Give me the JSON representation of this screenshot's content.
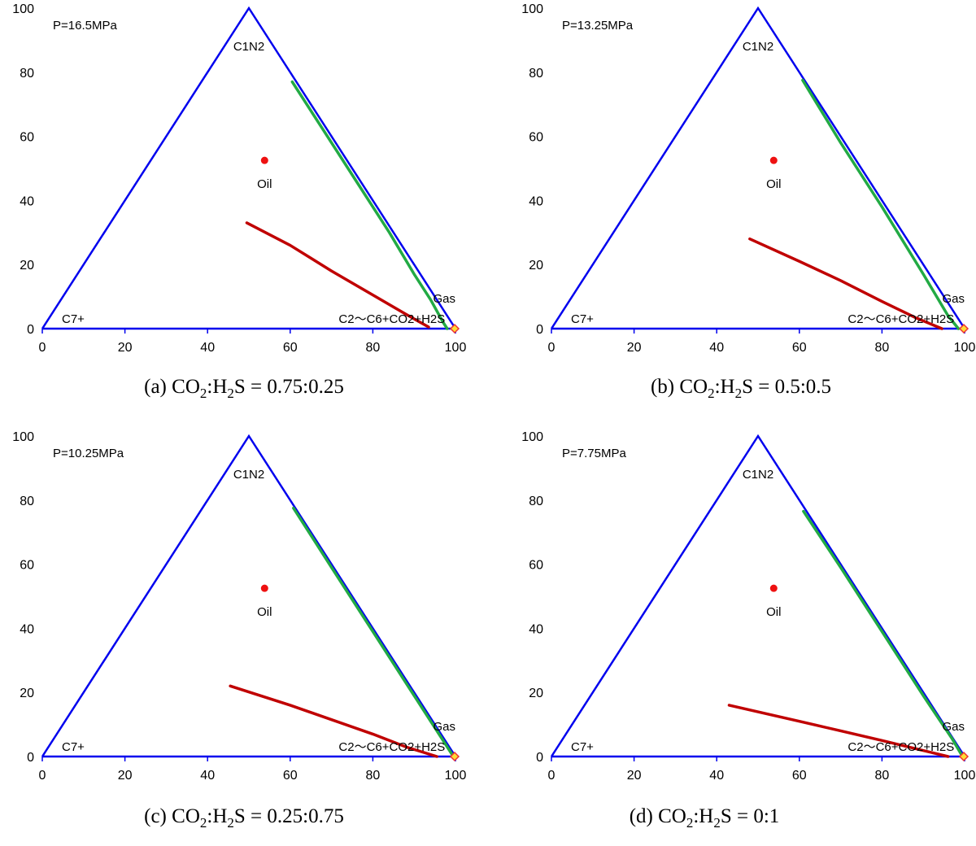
{
  "chart_data": [
    {
      "type": "scatter",
      "label": "(a)",
      "ratio_a": "0.75",
      "ratio_b": "0.25",
      "pressure": "P=16.5MPa",
      "xlim": [
        0,
        100
      ],
      "ylim": [
        0,
        100
      ],
      "xticks": [
        "0",
        "20",
        "40",
        "60",
        "80",
        "100"
      ],
      "yticks": [
        "0",
        "20",
        "40",
        "60",
        "80",
        "100"
      ],
      "vertex_labels": {
        "top": "C1N2",
        "left": "C7+",
        "right": "C2～C6+CO2+H2S"
      },
      "point_labels": {
        "oil": "Oil",
        "gas": "Gas"
      },
      "triangle": [
        [
          0,
          0
        ],
        [
          50,
          100
        ],
        [
          100,
          0
        ],
        [
          0,
          0
        ]
      ],
      "oil_point": [
        53.8,
        52.5
      ],
      "gas_point": [
        99.8,
        0
      ],
      "series": [
        {
          "color": "#22aa44",
          "points": [
            [
              60.5,
              77
            ],
            [
              68,
              62
            ],
            [
              76,
              46
            ],
            [
              84,
              30
            ],
            [
              90,
              17
            ],
            [
              94,
              9
            ],
            [
              97,
              2
            ],
            [
              98,
              0
            ]
          ]
        },
        {
          "color": "#c00000",
          "points": [
            [
              49.5,
              33
            ],
            [
              60,
              26
            ],
            [
              70,
              18
            ],
            [
              80,
              10.5
            ],
            [
              88,
              4.5
            ],
            [
              93.5,
              0.5
            ]
          ]
        }
      ]
    },
    {
      "type": "scatter",
      "label": "(b)",
      "ratio_a": "0.5",
      "ratio_b": "0.5",
      "pressure": "P=13.25MPa",
      "xlim": [
        0,
        100
      ],
      "ylim": [
        0,
        100
      ],
      "xticks": [
        "0",
        "20",
        "40",
        "60",
        "80",
        "100"
      ],
      "yticks": [
        "0",
        "20",
        "40",
        "60",
        "80",
        "100"
      ],
      "vertex_labels": {
        "top": "C1N2",
        "left": "C7+",
        "right": "C2～C6+CO2+H2S"
      },
      "point_labels": {
        "oil": "Oil",
        "gas": "Gas"
      },
      "triangle": [
        [
          0,
          0
        ],
        [
          50,
          100
        ],
        [
          100,
          0
        ],
        [
          0,
          0
        ]
      ],
      "oil_point": [
        53.8,
        52.5
      ],
      "gas_point": [
        99.8,
        0
      ],
      "series": [
        {
          "color": "#22aa44",
          "points": [
            [
              60.8,
              77.5
            ],
            [
              70,
              58
            ],
            [
              80,
              38
            ],
            [
              90,
              17
            ],
            [
              96,
              4
            ],
            [
              98.5,
              0
            ]
          ]
        },
        {
          "color": "#c00000",
          "points": [
            [
              48,
              28
            ],
            [
              60,
              21
            ],
            [
              70,
              15
            ],
            [
              80,
              8.5
            ],
            [
              88,
              3.5
            ],
            [
              94.5,
              0
            ]
          ]
        }
      ]
    },
    {
      "type": "scatter",
      "label": "(c)",
      "ratio_a": "0.25",
      "ratio_b": "0.75",
      "pressure": "P=10.25MPa",
      "xlim": [
        0,
        100
      ],
      "ylim": [
        0,
        100
      ],
      "xticks": [
        "0",
        "20",
        "40",
        "60",
        "80",
        "100"
      ],
      "yticks": [
        "0",
        "20",
        "40",
        "60",
        "80",
        "100"
      ],
      "vertex_labels": {
        "top": "C1N2",
        "left": "C7+",
        "right": "C2～C6+CO2+H2S"
      },
      "point_labels": {
        "oil": "Oil",
        "gas": "Gas"
      },
      "triangle": [
        [
          0,
          0
        ],
        [
          50,
          100
        ],
        [
          100,
          0
        ],
        [
          0,
          0
        ]
      ],
      "oil_point": [
        53.8,
        52.5
      ],
      "gas_point": [
        99.8,
        0
      ],
      "series": [
        {
          "color": "#22aa44",
          "points": [
            [
              60.8,
              77.5
            ],
            [
              70,
              59
            ],
            [
              80,
              39
            ],
            [
              90,
              19
            ],
            [
              96.5,
              6
            ],
            [
              99.5,
              0
            ]
          ]
        },
        {
          "color": "#c00000",
          "points": [
            [
              45.5,
              22
            ],
            [
              60,
              16
            ],
            [
              70,
              11.5
            ],
            [
              80,
              7
            ],
            [
              88,
              3
            ],
            [
              95.5,
              0
            ]
          ]
        }
      ]
    },
    {
      "type": "scatter",
      "label": "(d)",
      "ratio_a": "0",
      "ratio_b": "1",
      "pressure": "P=7.75MPa",
      "xlim": [
        0,
        100
      ],
      "ylim": [
        0,
        100
      ],
      "xticks": [
        "0",
        "20",
        "40",
        "60",
        "80",
        "100"
      ],
      "yticks": [
        "0",
        "20",
        "40",
        "60",
        "80",
        "100"
      ],
      "vertex_labels": {
        "top": "C1N2",
        "left": "C7+",
        "right": "C2～C6+CO2+H2S"
      },
      "point_labels": {
        "oil": "Oil",
        "gas": "Gas"
      },
      "triangle": [
        [
          0,
          0
        ],
        [
          50,
          100
        ],
        [
          100,
          0
        ],
        [
          0,
          0
        ]
      ],
      "oil_point": [
        53.8,
        52.5
      ],
      "gas_point": [
        99.8,
        0
      ],
      "series": [
        {
          "color": "#22aa44",
          "points": [
            [
              61,
              76.5
            ],
            [
              70,
              59
            ],
            [
              80,
              39
            ],
            [
              90,
              19
            ],
            [
              97,
              5.5
            ],
            [
              99.5,
              0
            ]
          ]
        },
        {
          "color": "#c00000",
          "points": [
            [
              43,
              16
            ],
            [
              60,
              11
            ],
            [
              70,
              8
            ],
            [
              80,
              5
            ],
            [
              88,
              2.5
            ],
            [
              96,
              0
            ]
          ]
        }
      ]
    }
  ],
  "styles": {
    "axis_color": "#0000ee",
    "oil_color": "#ee1111",
    "gas_fill": "#ffdd33",
    "gas_stroke": "#ee3333"
  }
}
